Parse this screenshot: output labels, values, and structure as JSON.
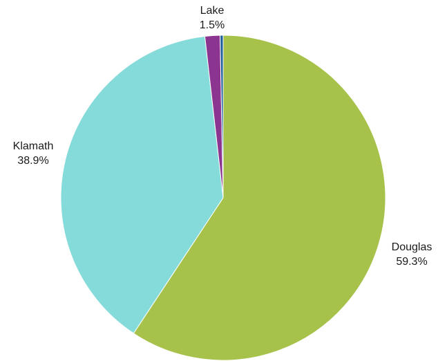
{
  "chart_data": {
    "type": "pie",
    "title": "",
    "start_angle_deg": 0,
    "direction": "clockwise",
    "slices": [
      {
        "label": "Douglas",
        "percent_label": "59.3%",
        "value": 59.3,
        "color": "#a6c24b"
      },
      {
        "label": "Klamath",
        "percent_label": "38.9%",
        "value": 38.9,
        "color": "#85dbd9"
      },
      {
        "label": "Lake",
        "percent_label": "1.5%",
        "value": 1.5,
        "color": "#8b3590"
      },
      {
        "label": "",
        "percent_label": "",
        "value": 0.3,
        "color": "#1f5f9e"
      }
    ]
  }
}
